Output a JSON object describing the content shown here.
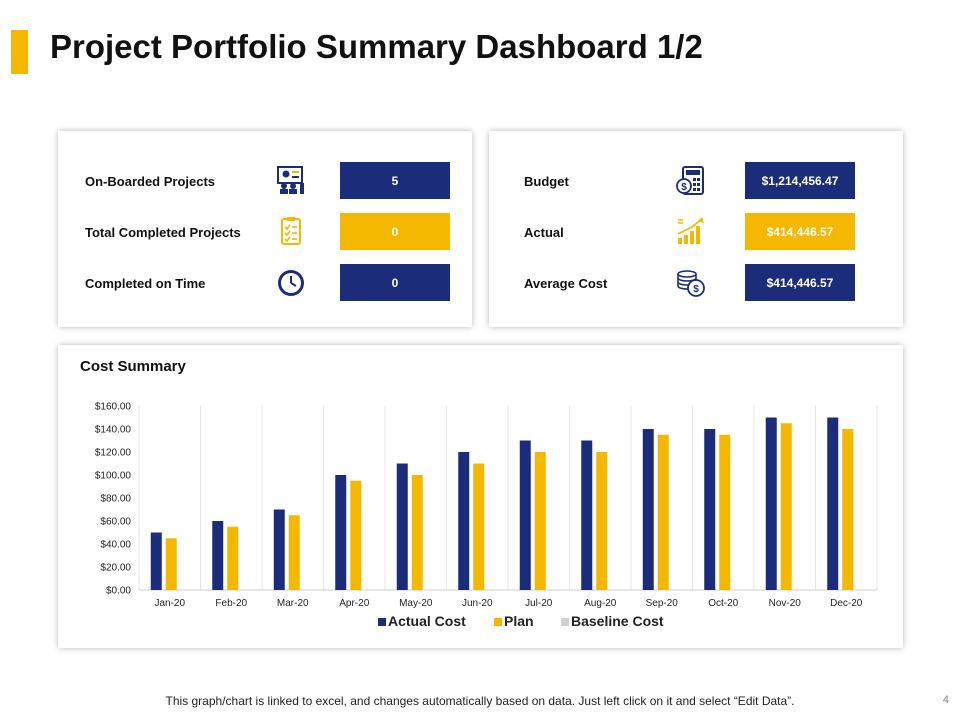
{
  "title": "Project Portfolio Summary Dashboard 1/2",
  "colors": {
    "accent": "#F5B800",
    "navy": "#1B2D7A",
    "gridline": "#e6e6e6",
    "baseline": "#d0d0d0"
  },
  "projects_card": {
    "rows": [
      {
        "label": "On-Boarded Projects",
        "value": "5",
        "icon": "presentation-team-icon",
        "color": "blue"
      },
      {
        "label": "Total Completed Projects",
        "value": "0",
        "icon": "clipboard-checklist-icon",
        "color": "gold"
      },
      {
        "label": "Completed on Time",
        "value": "0",
        "icon": "clock-icon",
        "color": "blue"
      }
    ]
  },
  "finance_card": {
    "rows": [
      {
        "label": "Budget",
        "value": "$1,214,456.47",
        "icon": "calculator-dollar-icon",
        "color": "blue"
      },
      {
        "label": "Actual",
        "value": "$414,446.57",
        "icon": "growth-chart-icon",
        "color": "gold"
      },
      {
        "label": "Average Cost",
        "value": "$414,446.57",
        "icon": "coins-icon",
        "color": "blue"
      }
    ]
  },
  "chart_data": {
    "type": "bar",
    "title": "Cost Summary",
    "categories": [
      "Jan-20",
      "Feb-20",
      "Mar-20",
      "Apr-20",
      "May-20",
      "Jun-20",
      "Jul-20",
      "Aug-20",
      "Sep-20",
      "Oct-20",
      "Nov-20",
      "Dec-20"
    ],
    "series": [
      {
        "name": "Actual Cost",
        "color": "#1B2D7A",
        "values": [
          50,
          60,
          70,
          100,
          110,
          120,
          130,
          130,
          140,
          140,
          150,
          150
        ]
      },
      {
        "name": "Plan",
        "color": "#F5B800",
        "values": [
          45,
          55,
          65,
          95,
          100,
          110,
          120,
          120,
          135,
          135,
          145,
          140
        ]
      },
      {
        "name": "Baseline Cost",
        "color": "#d0d0d0",
        "values": [
          0,
          0,
          0,
          0,
          0,
          0,
          0,
          0,
          0,
          0,
          0,
          0
        ]
      }
    ],
    "yticks": [
      "$0.00",
      "$20.00",
      "$40.00",
      "$60.00",
      "$80.00",
      "$100.00",
      "$120.00",
      "$140.00",
      "$160.00"
    ],
    "ylim": [
      0,
      160
    ],
    "xlabel": "",
    "ylabel": "",
    "legend_position": "bottom",
    "grid": "vertical"
  },
  "footer": "This graph/chart is linked to excel, and changes automatically based on data. Just left click on it and select “Edit Data”.",
  "page_number": "4"
}
